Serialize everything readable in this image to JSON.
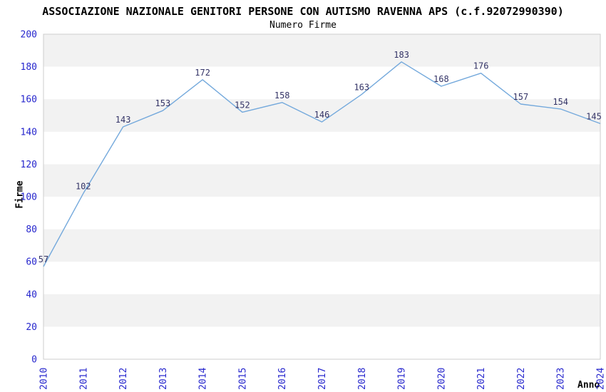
{
  "chart_data": {
    "type": "line",
    "title": "ASSOCIAZIONE NAZIONALE GENITORI PERSONE CON AUTISMO RAVENNA APS (c.f.92072990390)",
    "subtitle": "Numero Firme",
    "xlabel": "Anno",
    "ylabel": "Firme",
    "x": [
      2010,
      2011,
      2012,
      2013,
      2014,
      2015,
      2016,
      2017,
      2018,
      2019,
      2020,
      2021,
      2022,
      2023,
      2024
    ],
    "values": [
      57,
      102,
      143,
      153,
      172,
      152,
      158,
      146,
      163,
      183,
      168,
      176,
      157,
      154,
      145
    ],
    "ylim": [
      0,
      200
    ],
    "ytick_step": 20,
    "grid": "alternating-horizontal-bands",
    "legend": "none",
    "markers": "none",
    "data_labels": "above-points"
  },
  "colors": {
    "title": "#1a1a1a",
    "subtitle": "#555555",
    "axis_title": "#000000",
    "tick_label": "#2727cd",
    "data_label": "#333366",
    "line": "#74a9dc",
    "band": "#f2f2f2",
    "plot_border": "#cdcdcd",
    "background": "#ffffff"
  }
}
